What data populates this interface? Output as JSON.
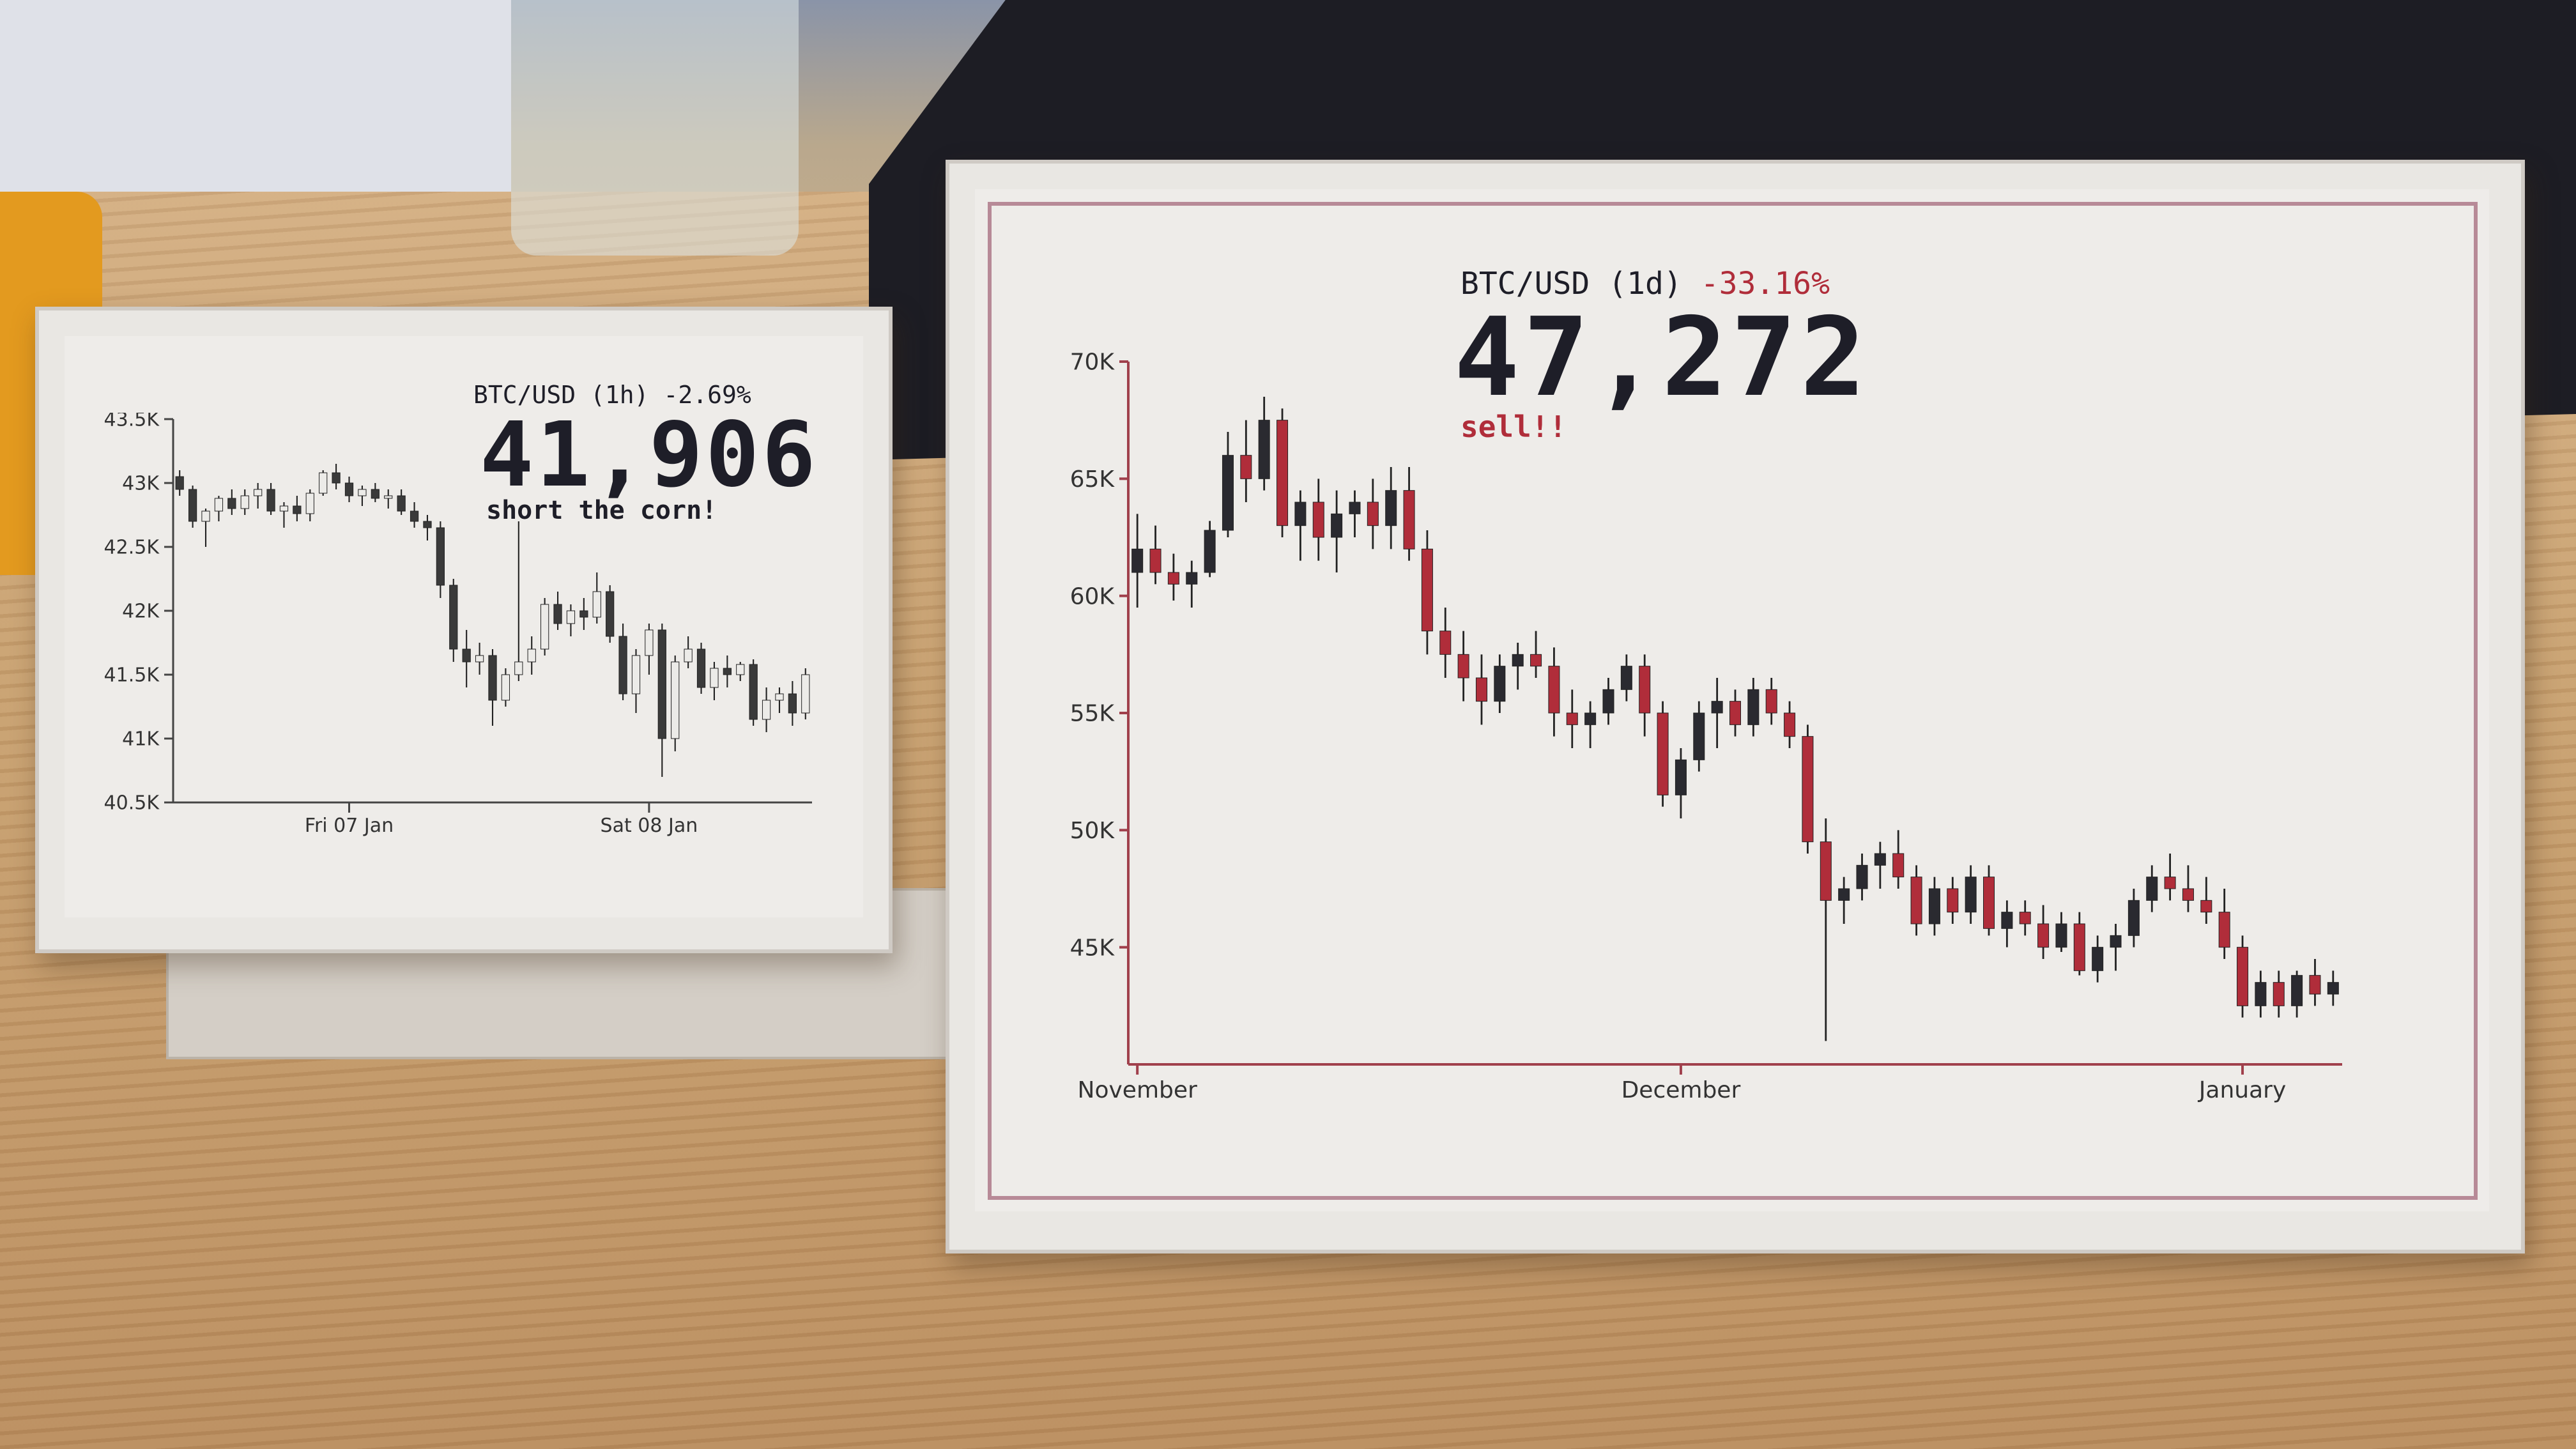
{
  "small_display": {
    "title": "BTC/USD (1h)",
    "change": "-2.69%",
    "price": "41,906",
    "message": "short the corn!",
    "chart_data": {
      "type": "candlestick",
      "ylim": [
        40500,
        43500
      ],
      "yticks": [
        {
          "value": 43500,
          "label": "43.5K"
        },
        {
          "value": 43000,
          "label": "43K"
        },
        {
          "value": 42500,
          "label": "42.5K"
        },
        {
          "value": 42000,
          "label": "42K"
        },
        {
          "value": 41500,
          "label": "41.5K"
        },
        {
          "value": 41000,
          "label": "41K"
        },
        {
          "value": 40500,
          "label": "40.5K"
        }
      ],
      "xticks": [
        "Fri 07 Jan",
        "Sat 08 Jan"
      ],
      "candles": [
        [
          43050,
          43100,
          42900,
          42950
        ],
        [
          42950,
          42980,
          42650,
          42700
        ],
        [
          42700,
          42800,
          42500,
          42780
        ],
        [
          42780,
          42900,
          42700,
          42880
        ],
        [
          42880,
          42950,
          42750,
          42800
        ],
        [
          42800,
          42950,
          42750,
          42900
        ],
        [
          42900,
          43000,
          42800,
          42950
        ],
        [
          42950,
          43000,
          42750,
          42780
        ],
        [
          42780,
          42850,
          42650,
          42820
        ],
        [
          42820,
          42900,
          42700,
          42760
        ],
        [
          42760,
          42950,
          42700,
          42920
        ],
        [
          42920,
          43100,
          42900,
          43080
        ],
        [
          43080,
          43150,
          42950,
          43000
        ],
        [
          43000,
          43050,
          42850,
          42900
        ],
        [
          42900,
          42980,
          42820,
          42950
        ],
        [
          42950,
          43000,
          42850,
          42880
        ],
        [
          42880,
          42950,
          42800,
          42900
        ],
        [
          42900,
          42950,
          42750,
          42780
        ],
        [
          42780,
          42850,
          42650,
          42700
        ],
        [
          42700,
          42750,
          42550,
          42650
        ],
        [
          42650,
          42700,
          42100,
          42200
        ],
        [
          42200,
          42250,
          41600,
          41700
        ],
        [
          41700,
          41850,
          41400,
          41600
        ],
        [
          41600,
          41750,
          41500,
          41650
        ],
        [
          41650,
          41700,
          41100,
          41300
        ],
        [
          41300,
          41550,
          41250,
          41500
        ],
        [
          41500,
          42700,
          41450,
          41600
        ],
        [
          41600,
          41800,
          41500,
          41700
        ],
        [
          41700,
          42100,
          41650,
          42050
        ],
        [
          42050,
          42150,
          41850,
          41900
        ],
        [
          41900,
          42050,
          41800,
          42000
        ],
        [
          42000,
          42100,
          41850,
          41950
        ],
        [
          41950,
          42300,
          41900,
          42150
        ],
        [
          42150,
          42200,
          41750,
          41800
        ],
        [
          41800,
          41900,
          41300,
          41350
        ],
        [
          41350,
          41700,
          41200,
          41650
        ],
        [
          41650,
          41900,
          41500,
          41850
        ],
        [
          41850,
          41900,
          40700,
          41000
        ],
        [
          41000,
          41650,
          40900,
          41600
        ],
        [
          41600,
          41800,
          41550,
          41700
        ],
        [
          41700,
          41750,
          41350,
          41400
        ],
        [
          41400,
          41600,
          41300,
          41550
        ],
        [
          41550,
          41650,
          41400,
          41500
        ],
        [
          41500,
          41600,
          41450,
          41580
        ],
        [
          41580,
          41620,
          41100,
          41150
        ],
        [
          41150,
          41400,
          41050,
          41300
        ],
        [
          41300,
          41400,
          41200,
          41350
        ],
        [
          41350,
          41450,
          41100,
          41200
        ],
        [
          41200,
          41550,
          41150,
          41500
        ]
      ]
    }
  },
  "large_display": {
    "title": "BTC/USD (1d)",
    "change": "-33.16%",
    "price": "47,272",
    "message": "sell!!",
    "chart_data": {
      "type": "candlestick",
      "ylim": [
        40000,
        70000
      ],
      "yticks": [
        {
          "value": 70000,
          "label": "70K"
        },
        {
          "value": 65000,
          "label": "65K"
        },
        {
          "value": 60000,
          "label": "60K"
        },
        {
          "value": 55000,
          "label": "55K"
        },
        {
          "value": 50000,
          "label": "50K"
        },
        {
          "value": 45000,
          "label": "45K"
        }
      ],
      "xticks": [
        {
          "label": "November",
          "index": 0
        },
        {
          "label": "December",
          "index": 30
        },
        {
          "label": "January",
          "index": 61
        }
      ],
      "candles": [
        [
          61000,
          63500,
          59500,
          62000
        ],
        [
          62000,
          63000,
          60500,
          61000
        ],
        [
          61000,
          61800,
          59800,
          60500
        ],
        [
          60500,
          61500,
          59500,
          61000
        ],
        [
          61000,
          63200,
          60800,
          62800
        ],
        [
          62800,
          67000,
          62500,
          66000
        ],
        [
          66000,
          67500,
          64000,
          65000
        ],
        [
          65000,
          68500,
          64500,
          67500
        ],
        [
          67500,
          68000,
          62500,
          63000
        ],
        [
          63000,
          64500,
          61500,
          64000
        ],
        [
          64000,
          65000,
          61500,
          62500
        ],
        [
          62500,
          64500,
          61000,
          63500
        ],
        [
          63500,
          64500,
          62500,
          64000
        ],
        [
          64000,
          65000,
          62000,
          63000
        ],
        [
          63000,
          65500,
          62000,
          64500
        ],
        [
          64500,
          65500,
          61500,
          62000
        ],
        [
          62000,
          62800,
          57500,
          58500
        ],
        [
          58500,
          59500,
          56500,
          57500
        ],
        [
          57500,
          58500,
          55500,
          56500
        ],
        [
          56500,
          57500,
          54500,
          55500
        ],
        [
          55500,
          57500,
          55000,
          57000
        ],
        [
          57000,
          58000,
          56000,
          57500
        ],
        [
          57500,
          58500,
          56500,
          57000
        ],
        [
          57000,
          57800,
          54000,
          55000
        ],
        [
          55000,
          56000,
          53500,
          54500
        ],
        [
          54500,
          55500,
          53500,
          55000
        ],
        [
          55000,
          56500,
          54500,
          56000
        ],
        [
          56000,
          57500,
          55500,
          57000
        ],
        [
          57000,
          57500,
          54000,
          55000
        ],
        [
          55000,
          55500,
          51000,
          51500
        ],
        [
          51500,
          53500,
          50500,
          53000
        ],
        [
          53000,
          55500,
          52500,
          55000
        ],
        [
          55000,
          56500,
          53500,
          55500
        ],
        [
          55500,
          56000,
          54000,
          54500
        ],
        [
          54500,
          56500,
          54000,
          56000
        ],
        [
          56000,
          56500,
          54500,
          55000
        ],
        [
          55000,
          55500,
          53500,
          54000
        ],
        [
          54000,
          54500,
          49000,
          49500
        ],
        [
          49500,
          50500,
          41000,
          47000
        ],
        [
          47000,
          48000,
          46000,
          47500
        ],
        [
          47500,
          49000,
          47000,
          48500
        ],
        [
          48500,
          49500,
          47500,
          49000
        ],
        [
          49000,
          50000,
          47500,
          48000
        ],
        [
          48000,
          48500,
          45500,
          46000
        ],
        [
          46000,
          48000,
          45500,
          47500
        ],
        [
          47500,
          48000,
          46000,
          46500
        ],
        [
          46500,
          48500,
          46000,
          48000
        ],
        [
          48000,
          48500,
          45500,
          45800
        ],
        [
          45800,
          47000,
          45000,
          46500
        ],
        [
          46500,
          47000,
          45500,
          46000
        ],
        [
          46000,
          46800,
          44500,
          45000
        ],
        [
          45000,
          46500,
          44800,
          46000
        ],
        [
          46000,
          46500,
          43800,
          44000
        ],
        [
          44000,
          45500,
          43500,
          45000
        ],
        [
          45000,
          46000,
          44000,
          45500
        ],
        [
          45500,
          47500,
          45000,
          47000
        ],
        [
          47000,
          48500,
          46500,
          48000
        ],
        [
          48000,
          49000,
          47000,
          47500
        ],
        [
          47500,
          48500,
          46500,
          47000
        ],
        [
          47000,
          48000,
          46000,
          46500
        ],
        [
          46500,
          47500,
          44500,
          45000
        ],
        [
          45000,
          45500,
          42000,
          42500
        ],
        [
          42500,
          44000,
          42000,
          43500
        ],
        [
          43500,
          44000,
          42000,
          42500
        ],
        [
          42500,
          44000,
          42000,
          43800
        ],
        [
          43800,
          44500,
          42500,
          43000
        ],
        [
          43000,
          44000,
          42500,
          43500
        ]
      ]
    }
  }
}
